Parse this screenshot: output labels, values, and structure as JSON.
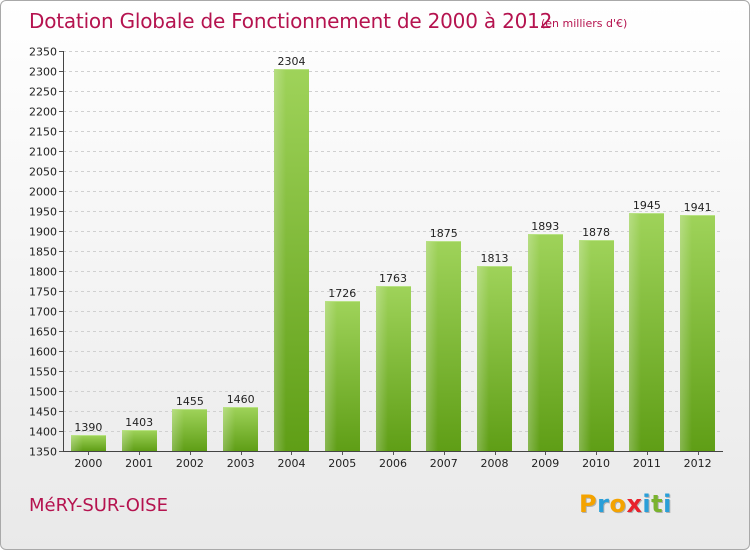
{
  "title": "Dotation Globale de Fonctionnement de 2000 à 2012",
  "subtitle": "(en milliers d'€)",
  "commune": "MéRY-SUR-OISE",
  "logo": {
    "text": "Proxiti",
    "letters": [
      "P",
      "r",
      "o",
      "x",
      "i",
      "t",
      "i"
    ],
    "colors": [
      "#f4a300",
      "#2a9fd8",
      "#f4a300",
      "#e8222c",
      "#2a9fd8",
      "#7ab32e",
      "#2a9fd8"
    ]
  },
  "colors": {
    "title": "#b5134f",
    "bar_top": "#9fd35a",
    "bar_bottom": "#5f9e16"
  },
  "chart_data": {
    "type": "bar",
    "categories": [
      "2000",
      "2001",
      "2002",
      "2003",
      "2004",
      "2005",
      "2006",
      "2007",
      "2008",
      "2009",
      "2010",
      "2011",
      "2012"
    ],
    "values": [
      1390,
      1403,
      1455,
      1460,
      2304,
      1726,
      1763,
      1875,
      1813,
      1893,
      1878,
      1945,
      1941
    ],
    "ylim": [
      1350,
      2350
    ],
    "yticks": [
      1350,
      1400,
      1450,
      1500,
      1550,
      1600,
      1650,
      1700,
      1750,
      1800,
      1850,
      1900,
      1950,
      2000,
      2050,
      2100,
      2150,
      2200,
      2250,
      2300,
      2350
    ],
    "grid": true,
    "xlabel": "",
    "ylabel": ""
  }
}
